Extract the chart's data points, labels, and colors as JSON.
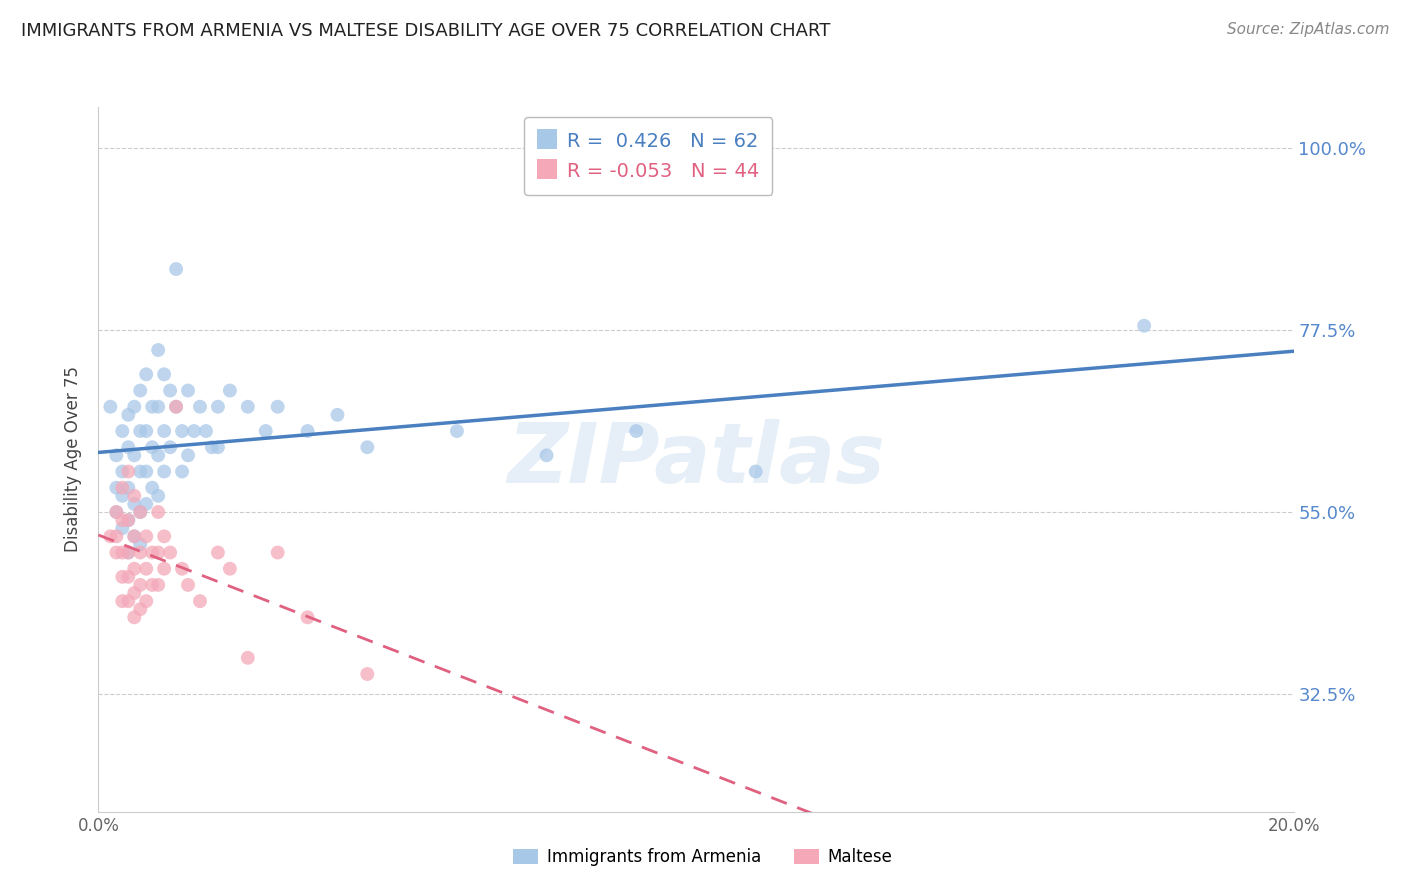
{
  "title": "IMMIGRANTS FROM ARMENIA VS MALTESE DISABILITY AGE OVER 75 CORRELATION CHART",
  "source": "Source: ZipAtlas.com",
  "ylabel": "Disability Age Over 75",
  "yticks": [
    "100.0%",
    "77.5%",
    "55.0%",
    "32.5%"
  ],
  "ytick_values": [
    1.0,
    0.775,
    0.55,
    0.325
  ],
  "legend_blue_r": "0.426",
  "legend_blue_n": "62",
  "legend_pink_r": "-0.053",
  "legend_pink_n": "44",
  "legend_blue_label": "Immigrants from Armenia",
  "legend_pink_label": "Maltese",
  "blue_color": "#a8c8e8",
  "pink_color": "#f4a8b8",
  "blue_line_color": "#4a7fc0",
  "pink_line_color": "#e06080",
  "blue_scatter": [
    [
      0.002,
      0.68
    ],
    [
      0.003,
      0.62
    ],
    [
      0.003,
      0.58
    ],
    [
      0.003,
      0.55
    ],
    [
      0.004,
      0.65
    ],
    [
      0.004,
      0.6
    ],
    [
      0.004,
      0.57
    ],
    [
      0.004,
      0.53
    ],
    [
      0.005,
      0.67
    ],
    [
      0.005,
      0.63
    ],
    [
      0.005,
      0.58
    ],
    [
      0.005,
      0.54
    ],
    [
      0.005,
      0.5
    ],
    [
      0.006,
      0.68
    ],
    [
      0.006,
      0.62
    ],
    [
      0.006,
      0.56
    ],
    [
      0.006,
      0.52
    ],
    [
      0.007,
      0.7
    ],
    [
      0.007,
      0.65
    ],
    [
      0.007,
      0.6
    ],
    [
      0.007,
      0.55
    ],
    [
      0.007,
      0.51
    ],
    [
      0.008,
      0.72
    ],
    [
      0.008,
      0.65
    ],
    [
      0.008,
      0.6
    ],
    [
      0.008,
      0.56
    ],
    [
      0.009,
      0.68
    ],
    [
      0.009,
      0.63
    ],
    [
      0.009,
      0.58
    ],
    [
      0.01,
      0.75
    ],
    [
      0.01,
      0.68
    ],
    [
      0.01,
      0.62
    ],
    [
      0.01,
      0.57
    ],
    [
      0.011,
      0.72
    ],
    [
      0.011,
      0.65
    ],
    [
      0.011,
      0.6
    ],
    [
      0.012,
      0.7
    ],
    [
      0.012,
      0.63
    ],
    [
      0.013,
      0.85
    ],
    [
      0.013,
      0.68
    ],
    [
      0.014,
      0.65
    ],
    [
      0.014,
      0.6
    ],
    [
      0.015,
      0.7
    ],
    [
      0.015,
      0.62
    ],
    [
      0.016,
      0.65
    ],
    [
      0.017,
      0.68
    ],
    [
      0.018,
      0.65
    ],
    [
      0.019,
      0.63
    ],
    [
      0.02,
      0.68
    ],
    [
      0.02,
      0.63
    ],
    [
      0.022,
      0.7
    ],
    [
      0.025,
      0.68
    ],
    [
      0.028,
      0.65
    ],
    [
      0.03,
      0.68
    ],
    [
      0.035,
      0.65
    ],
    [
      0.04,
      0.67
    ],
    [
      0.045,
      0.63
    ],
    [
      0.06,
      0.65
    ],
    [
      0.075,
      0.62
    ],
    [
      0.09,
      0.65
    ],
    [
      0.11,
      0.6
    ],
    [
      0.175,
      0.78
    ]
  ],
  "pink_scatter": [
    [
      0.002,
      0.52
    ],
    [
      0.003,
      0.55
    ],
    [
      0.003,
      0.52
    ],
    [
      0.003,
      0.5
    ],
    [
      0.004,
      0.58
    ],
    [
      0.004,
      0.54
    ],
    [
      0.004,
      0.5
    ],
    [
      0.004,
      0.47
    ],
    [
      0.004,
      0.44
    ],
    [
      0.005,
      0.6
    ],
    [
      0.005,
      0.54
    ],
    [
      0.005,
      0.5
    ],
    [
      0.005,
      0.47
    ],
    [
      0.005,
      0.44
    ],
    [
      0.006,
      0.57
    ],
    [
      0.006,
      0.52
    ],
    [
      0.006,
      0.48
    ],
    [
      0.006,
      0.45
    ],
    [
      0.006,
      0.42
    ],
    [
      0.007,
      0.55
    ],
    [
      0.007,
      0.5
    ],
    [
      0.007,
      0.46
    ],
    [
      0.007,
      0.43
    ],
    [
      0.008,
      0.52
    ],
    [
      0.008,
      0.48
    ],
    [
      0.008,
      0.44
    ],
    [
      0.009,
      0.5
    ],
    [
      0.009,
      0.46
    ],
    [
      0.01,
      0.55
    ],
    [
      0.01,
      0.5
    ],
    [
      0.01,
      0.46
    ],
    [
      0.011,
      0.52
    ],
    [
      0.011,
      0.48
    ],
    [
      0.012,
      0.5
    ],
    [
      0.013,
      0.68
    ],
    [
      0.014,
      0.48
    ],
    [
      0.015,
      0.46
    ],
    [
      0.017,
      0.44
    ],
    [
      0.02,
      0.5
    ],
    [
      0.022,
      0.48
    ],
    [
      0.025,
      0.37
    ],
    [
      0.03,
      0.5
    ],
    [
      0.035,
      0.42
    ],
    [
      0.045,
      0.35
    ]
  ],
  "xlim": [
    0.0,
    0.2
  ],
  "ylim": [
    0.18,
    1.05
  ],
  "background_color": "#ffffff",
  "grid_color": "#cccccc"
}
